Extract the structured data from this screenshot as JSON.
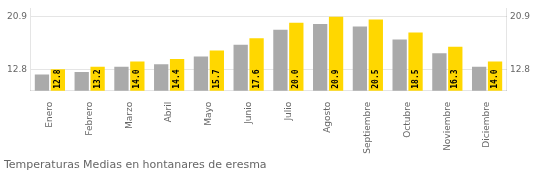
{
  "chart_data": {
    "type": "bar",
    "title": "Temperaturas Medias en hontanares de eresma",
    "categories": [
      "Enero",
      "Febrero",
      "Marzo",
      "Abril",
      "Mayo",
      "Junio",
      "Julio",
      "Agosto",
      "Septiembre",
      "Octubre",
      "Noviembre",
      "Diciembre"
    ],
    "series": [
      {
        "color": "#AAAAAA",
        "values": [
          12.0,
          12.4,
          13.2,
          13.6,
          14.8,
          16.6,
          18.9,
          19.8,
          19.4,
          17.4,
          15.3,
          13.2
        ]
      },
      {
        "color": "#FFD700",
        "values": [
          12.8,
          13.2,
          14.0,
          14.4,
          15.7,
          17.6,
          20.0,
          20.9,
          20.5,
          18.5,
          16.3,
          14.0
        ],
        "value_labels": [
          "12.8",
          "13.2",
          "14.0",
          "14.4",
          "15.7",
          "17.6",
          "20.0",
          "20.9",
          "20.5",
          "18.5",
          "16.3",
          "14.0"
        ],
        "data_labels": true
      }
    ],
    "ylim": [
      9.5,
      22.2
    ],
    "yticks": [
      12.8,
      20.9
    ],
    "y2lim": [
      9.5,
      22.2
    ],
    "y2ticks": [
      12.8,
      20.9
    ],
    "grid": true
  }
}
